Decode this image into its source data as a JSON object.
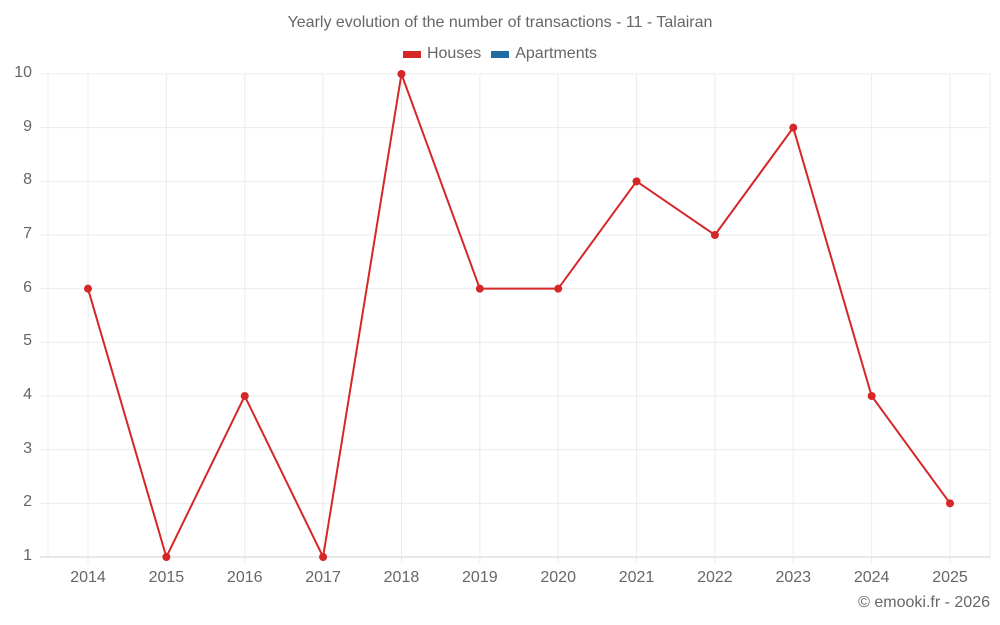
{
  "title": "Yearly evolution of the number of transactions - 11 - Talairan",
  "legend": [
    {
      "label": "Houses",
      "color": "#d62728"
    },
    {
      "label": "Apartments",
      "color": "#1f6ea3"
    }
  ],
  "credit": "© emooki.fr - 2026",
  "chart_data": {
    "type": "line",
    "title": "Yearly evolution of the number of transactions - 11 - Talairan",
    "xlabel": "",
    "ylabel": "",
    "categories": [
      "2014",
      "2015",
      "2016",
      "2017",
      "2018",
      "2019",
      "2020",
      "2021",
      "2022",
      "2023",
      "2024",
      "2025"
    ],
    "series": [
      {
        "name": "Houses",
        "color": "#d62728",
        "values": [
          6,
          1,
          4,
          1,
          10,
          6,
          6,
          8,
          7,
          9,
          4,
          2
        ]
      },
      {
        "name": "Apartments",
        "color": "#1f6ea3",
        "values": []
      }
    ],
    "ylim": [
      1,
      10
    ],
    "yticks": [
      "1",
      "2",
      "3",
      "4",
      "5",
      "6",
      "7",
      "8",
      "9",
      "10"
    ],
    "grid": true,
    "legend_position": "top"
  }
}
